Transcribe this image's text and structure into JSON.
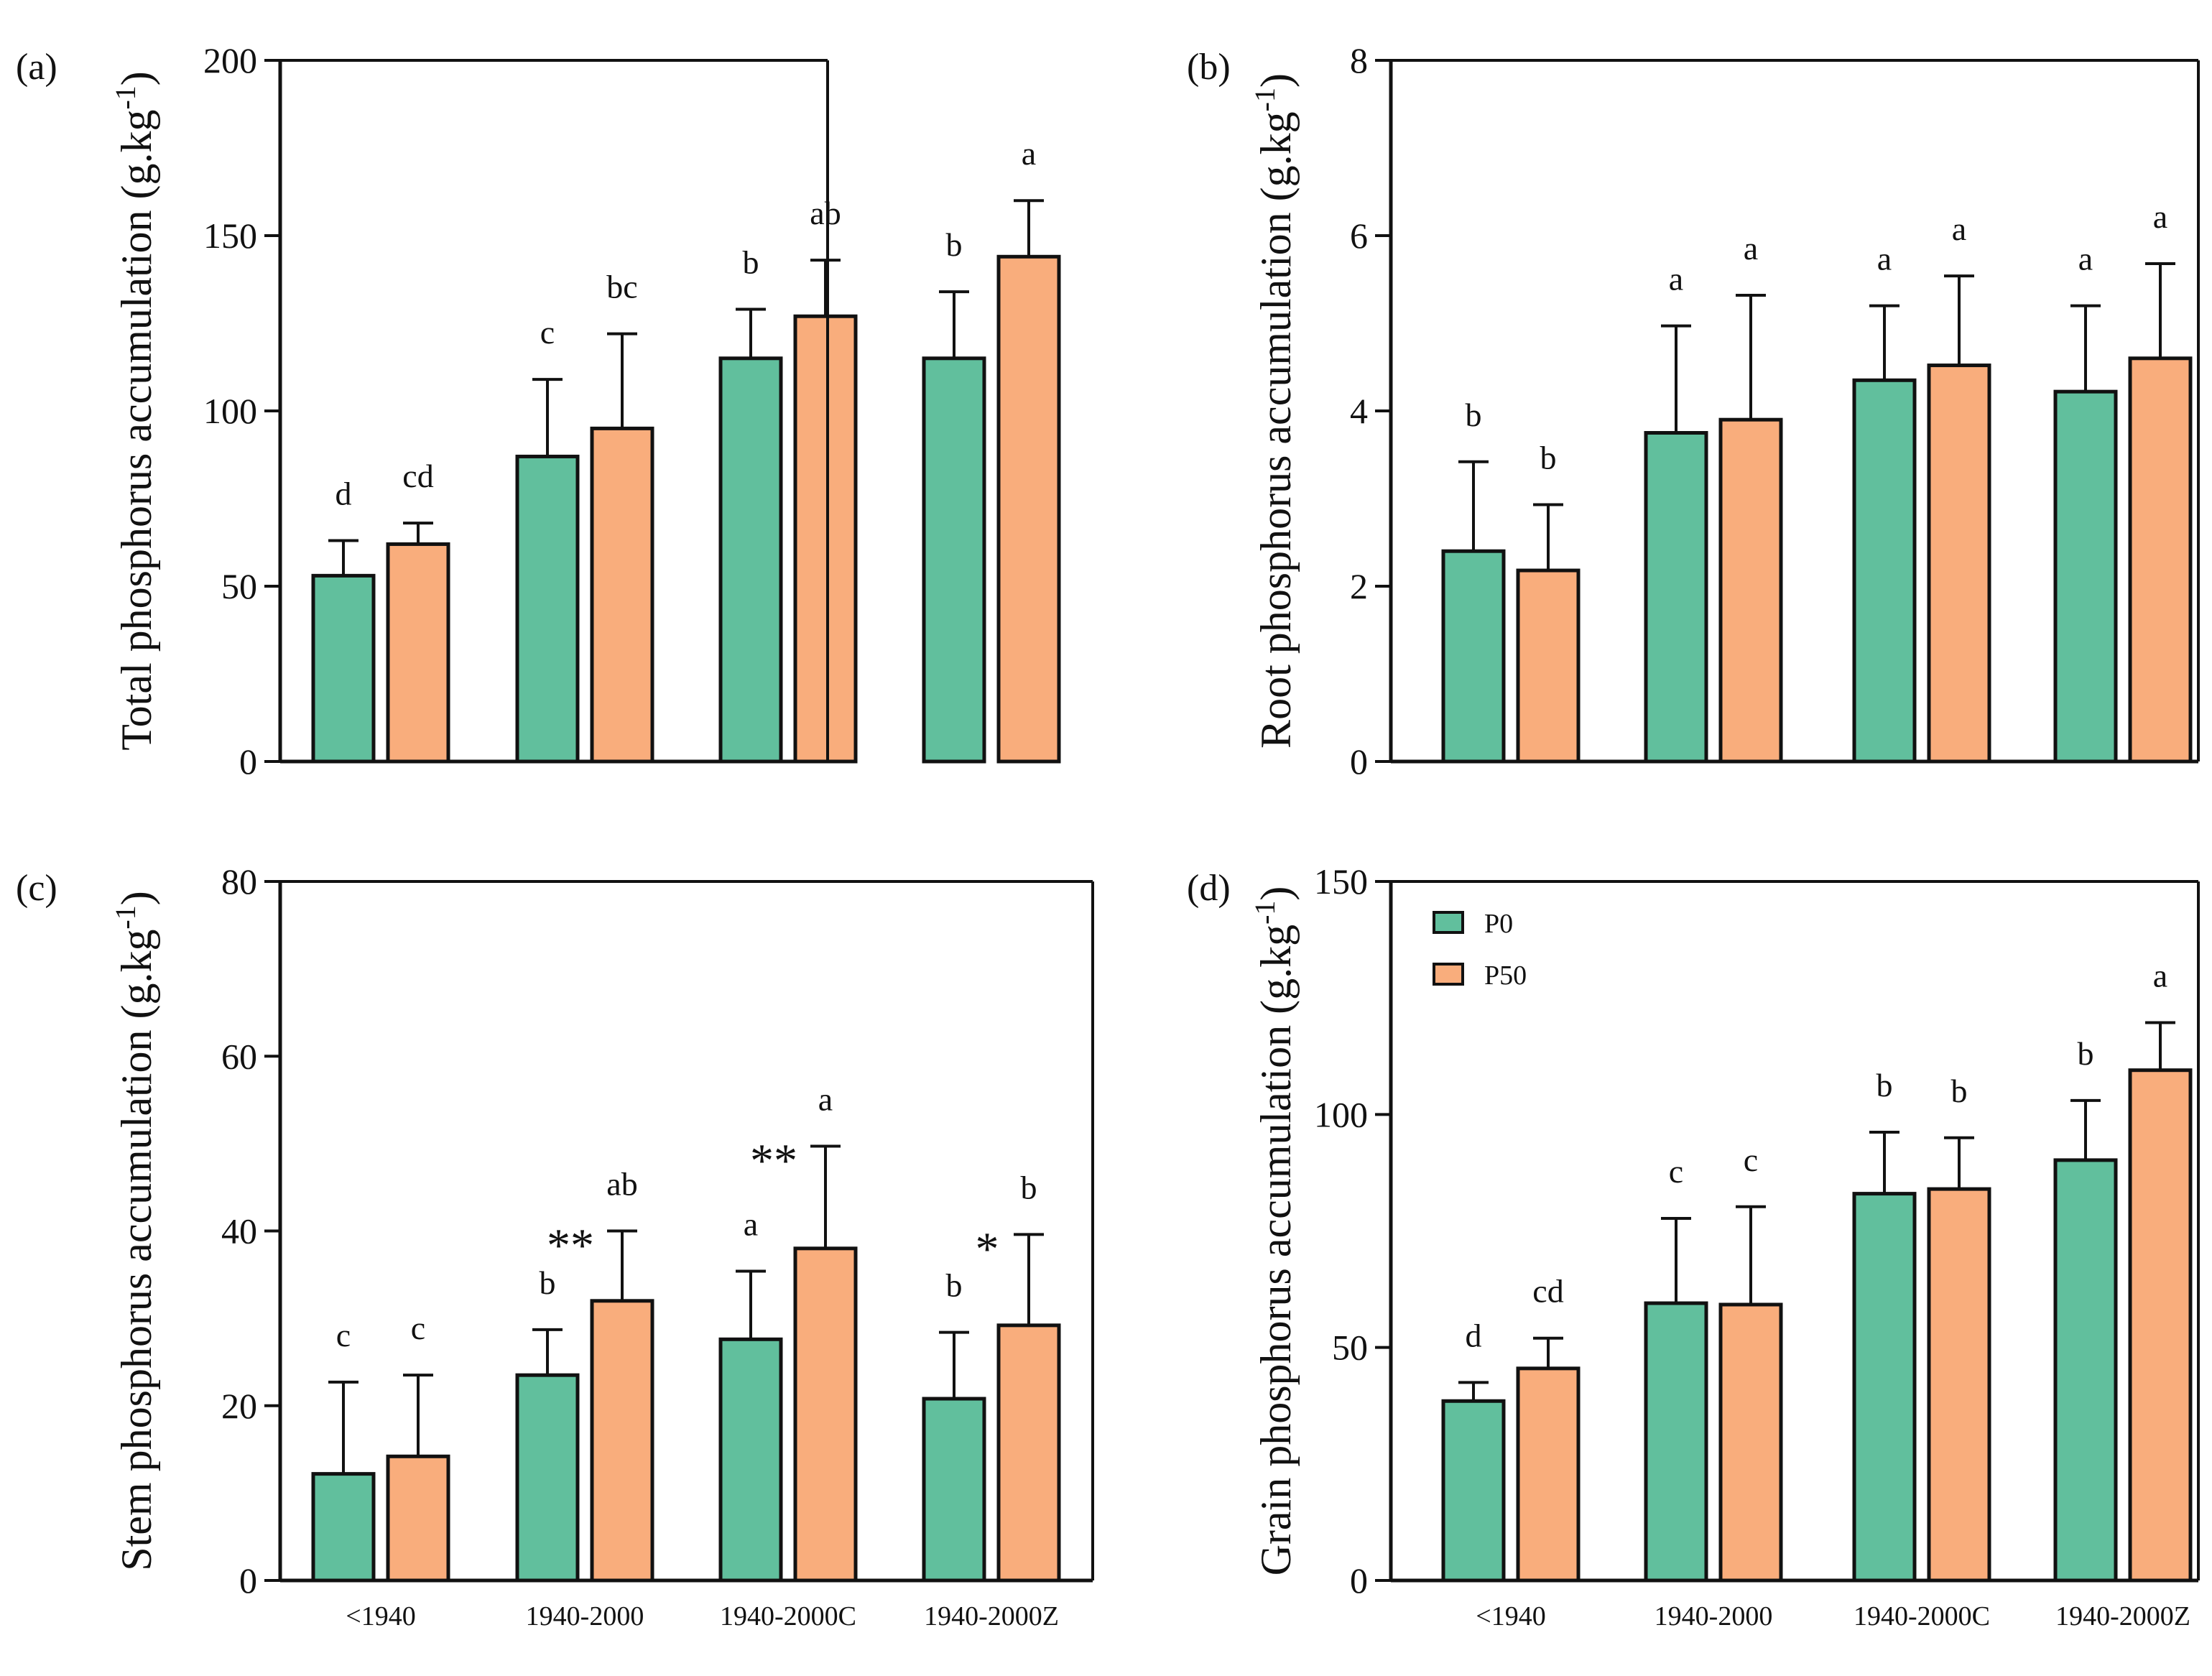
{
  "colors": {
    "P0": "#61BF9D",
    "P50": "#F9AD7C",
    "axis": "#111111"
  },
  "legend": {
    "items": [
      {
        "label": "P0",
        "series": "P0"
      },
      {
        "label": "P50",
        "series": "P50"
      }
    ]
  },
  "chart_data": [
    {
      "id": "a",
      "panel_label": "(a)",
      "type": "bar",
      "ylabel": "Total phosphorus accumulation (g.kg",
      "ylabel_sup": "-1",
      "ylabel_close": ")",
      "ylim": [
        0,
        200
      ],
      "yticks": [
        0,
        50,
        100,
        150,
        200
      ],
      "categories": [
        "<1940",
        "1940-2000",
        "1940-2000C",
        "1940-2000Z"
      ],
      "show_xticklabels": false,
      "series": [
        {
          "name": "P0",
          "values": [
            53,
            87,
            115,
            115
          ],
          "errors": [
            10,
            22,
            14,
            19
          ],
          "letters": [
            "d",
            "c",
            "b",
            "b"
          ]
        },
        {
          "name": "P50",
          "values": [
            62,
            95,
            127,
            144
          ],
          "errors": [
            6,
            27,
            16,
            16
          ],
          "letters": [
            "cd",
            "bc",
            "ab",
            "a"
          ]
        }
      ],
      "significance": [
        "",
        "",
        "",
        ""
      ]
    },
    {
      "id": "b",
      "panel_label": "(b)",
      "type": "bar",
      "ylabel": "Root phosphorus accumulation (g.kg",
      "ylabel_sup": "-1",
      "ylabel_close": ")",
      "ylim": [
        0,
        8
      ],
      "yticks": [
        0,
        2,
        4,
        6,
        8
      ],
      "categories": [
        "<1940",
        "1940-2000",
        "1940-2000C",
        "1940-2000Z"
      ],
      "show_xticklabels": false,
      "series": [
        {
          "name": "P0",
          "values": [
            2.4,
            3.75,
            4.35,
            4.22
          ],
          "errors": [
            1.02,
            1.22,
            0.85,
            0.98
          ],
          "letters": [
            "b",
            "a",
            "a",
            "a"
          ]
        },
        {
          "name": "P50",
          "values": [
            2.18,
            3.9,
            4.52,
            4.6
          ],
          "errors": [
            0.75,
            1.42,
            1.02,
            1.08
          ],
          "letters": [
            "b",
            "a",
            "a",
            "a"
          ]
        }
      ],
      "significance": [
        "",
        "",
        "",
        ""
      ]
    },
    {
      "id": "c",
      "panel_label": "(c)",
      "type": "bar",
      "ylabel": "Stem phosphorus accumulation (g.kg",
      "ylabel_sup": "-1",
      "ylabel_close": ")",
      "ylim": [
        0,
        80
      ],
      "yticks": [
        0,
        20,
        40,
        60,
        80
      ],
      "categories": [
        "<1940",
        "1940-2000",
        "1940-2000C",
        "1940-2000Z"
      ],
      "show_xticklabels": true,
      "series": [
        {
          "name": "P0",
          "values": [
            12.2,
            23.5,
            27.6,
            20.8
          ],
          "errors": [
            10.5,
            5.2,
            7.8,
            7.6
          ],
          "letters": [
            "c",
            "b",
            "a",
            "b"
          ]
        },
        {
          "name": "P50",
          "values": [
            14.2,
            32,
            38,
            29.2
          ],
          "errors": [
            9.3,
            8,
            11.7,
            10.4
          ],
          "letters": [
            "c",
            "ab",
            "a",
            "b"
          ]
        }
      ],
      "significance": [
        "",
        "**",
        "**",
        "*"
      ]
    },
    {
      "id": "d",
      "panel_label": "(d)",
      "type": "bar",
      "ylabel": "Grain phosphorus accumulation (g.kg",
      "ylabel_sup": "-1",
      "ylabel_close": ")",
      "ylim": [
        0,
        150
      ],
      "yticks": [
        0,
        50,
        100,
        150
      ],
      "categories": [
        "<1940",
        "1940-2000",
        "1940-2000C",
        "1940-2000Z"
      ],
      "show_xticklabels": true,
      "show_legend": true,
      "series": [
        {
          "name": "P0",
          "values": [
            38.5,
            59.5,
            83,
            90.2
          ],
          "errors": [
            4,
            18.2,
            13.2,
            12.8
          ],
          "letters": [
            "d",
            "c",
            "b",
            "b"
          ]
        },
        {
          "name": "P50",
          "values": [
            45.5,
            59.2,
            84,
            109.5
          ],
          "errors": [
            6.5,
            21,
            11,
            10.2
          ],
          "letters": [
            "cd",
            "c",
            "b",
            "a"
          ]
        }
      ],
      "significance": [
        "",
        "",
        "",
        ""
      ]
    }
  ]
}
